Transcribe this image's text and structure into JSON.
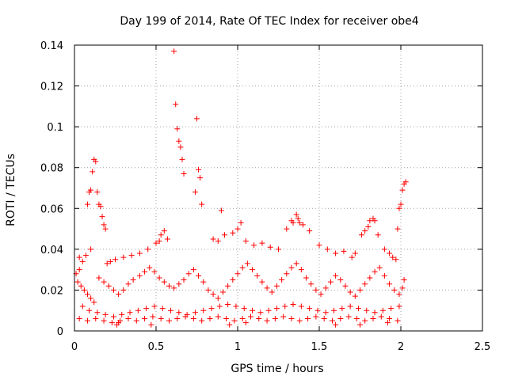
{
  "chart_data": {
    "type": "scatter",
    "title": "Day 199 of 2014, Rate Of TEC Index for receiver obe4",
    "xlabel": "GPS time / hours",
    "ylabel": "ROTI / TECUs",
    "xlim": [
      0,
      2.5
    ],
    "ylim": [
      0,
      0.14
    ],
    "xticks": [
      0,
      0.5,
      1,
      1.5,
      2,
      2.5
    ],
    "xtick_labels": [
      "0",
      "0.5",
      "1",
      "1.5",
      "2",
      "2.5"
    ],
    "yticks": [
      0,
      0.02,
      0.04,
      0.06,
      0.08,
      0.1,
      0.12,
      0.14
    ],
    "ytick_labels": [
      "0",
      "0.02",
      "0.04",
      "0.06",
      "0.08",
      "0.1",
      "0.12",
      "0.14"
    ],
    "grid": true,
    "marker": "plus",
    "color": "#ff0000",
    "series": [
      {
        "name": "ROTI",
        "points": [
          [
            0.61,
            0.137
          ],
          [
            0.62,
            0.111
          ],
          [
            0.63,
            0.099
          ],
          [
            0.64,
            0.093
          ],
          [
            0.65,
            0.09
          ],
          [
            0.66,
            0.084
          ],
          [
            0.67,
            0.077
          ],
          [
            0.75,
            0.104
          ],
          [
            0.76,
            0.079
          ],
          [
            0.77,
            0.075
          ],
          [
            0.74,
            0.068
          ],
          [
            0.78,
            0.062
          ],
          [
            0.12,
            0.084
          ],
          [
            0.13,
            0.083
          ],
          [
            0.11,
            0.078
          ],
          [
            0.1,
            0.069
          ],
          [
            0.09,
            0.068
          ],
          [
            0.14,
            0.068
          ],
          [
            0.15,
            0.062
          ],
          [
            0.08,
            0.062
          ],
          [
            0.16,
            0.061
          ],
          [
            0.17,
            0.056
          ],
          [
            0.18,
            0.052
          ],
          [
            0.19,
            0.05
          ],
          [
            2.03,
            0.073
          ],
          [
            2.02,
            0.072
          ],
          [
            2.01,
            0.069
          ],
          [
            2.0,
            0.062
          ],
          [
            1.99,
            0.06
          ],
          [
            1.98,
            0.05
          ],
          [
            0.9,
            0.059
          ],
          [
            1.02,
            0.053
          ],
          [
            1.0,
            0.05
          ],
          [
            0.97,
            0.048
          ],
          [
            0.85,
            0.045
          ],
          [
            0.88,
            0.044
          ],
          [
            0.92,
            0.047
          ],
          [
            1.05,
            0.044
          ],
          [
            1.36,
            0.057
          ],
          [
            1.37,
            0.055
          ],
          [
            1.33,
            0.054
          ],
          [
            1.34,
            0.053
          ],
          [
            1.38,
            0.053
          ],
          [
            1.4,
            0.052
          ],
          [
            1.3,
            0.05
          ],
          [
            1.44,
            0.049
          ],
          [
            1.83,
            0.055
          ],
          [
            1.84,
            0.054
          ],
          [
            1.81,
            0.054
          ],
          [
            1.8,
            0.051
          ],
          [
            1.78,
            0.049
          ],
          [
            1.76,
            0.047
          ],
          [
            1.86,
            0.047
          ],
          [
            0.55,
            0.049
          ],
          [
            0.53,
            0.047
          ],
          [
            0.52,
            0.044
          ],
          [
            0.57,
            0.045
          ],
          [
            0.5,
            0.043
          ],
          [
            0.45,
            0.04
          ],
          [
            0.4,
            0.038
          ],
          [
            0.35,
            0.037
          ],
          [
            0.3,
            0.036
          ],
          [
            0.25,
            0.035
          ],
          [
            0.22,
            0.034
          ],
          [
            0.2,
            0.033
          ],
          [
            0.05,
            0.034
          ],
          [
            0.03,
            0.036
          ],
          [
            0.07,
            0.037
          ],
          [
            0.1,
            0.04
          ],
          [
            1.1,
            0.042
          ],
          [
            1.15,
            0.043
          ],
          [
            1.2,
            0.041
          ],
          [
            1.25,
            0.04
          ],
          [
            1.5,
            0.042
          ],
          [
            1.55,
            0.04
          ],
          [
            1.6,
            0.038
          ],
          [
            1.65,
            0.039
          ],
          [
            1.7,
            0.036
          ],
          [
            1.72,
            0.038
          ],
          [
            1.9,
            0.04
          ],
          [
            1.93,
            0.038
          ],
          [
            1.95,
            0.036
          ],
          [
            1.97,
            0.035
          ],
          [
            0.02,
            0.024
          ],
          [
            0.04,
            0.022
          ],
          [
            0.06,
            0.02
          ],
          [
            0.08,
            0.018
          ],
          [
            0.1,
            0.016
          ],
          [
            0.12,
            0.014
          ],
          [
            0.01,
            0.028
          ],
          [
            0.03,
            0.03
          ],
          [
            0.15,
            0.026
          ],
          [
            0.18,
            0.024
          ],
          [
            0.21,
            0.022
          ],
          [
            0.24,
            0.02
          ],
          [
            0.27,
            0.018
          ],
          [
            0.3,
            0.02
          ],
          [
            0.33,
            0.023
          ],
          [
            0.36,
            0.025
          ],
          [
            0.4,
            0.027
          ],
          [
            0.43,
            0.029
          ],
          [
            0.46,
            0.031
          ],
          [
            0.49,
            0.029
          ],
          [
            0.52,
            0.026
          ],
          [
            0.55,
            0.024
          ],
          [
            0.58,
            0.022
          ],
          [
            0.61,
            0.021
          ],
          [
            0.64,
            0.023
          ],
          [
            0.67,
            0.025
          ],
          [
            0.7,
            0.028
          ],
          [
            0.73,
            0.03
          ],
          [
            0.76,
            0.027
          ],
          [
            0.79,
            0.024
          ],
          [
            0.82,
            0.02
          ],
          [
            0.85,
            0.018
          ],
          [
            0.88,
            0.016
          ],
          [
            0.91,
            0.019
          ],
          [
            0.94,
            0.022
          ],
          [
            0.97,
            0.025
          ],
          [
            1.0,
            0.028
          ],
          [
            1.03,
            0.031
          ],
          [
            1.06,
            0.033
          ],
          [
            1.09,
            0.03
          ],
          [
            1.12,
            0.027
          ],
          [
            1.15,
            0.024
          ],
          [
            1.18,
            0.021
          ],
          [
            1.21,
            0.019
          ],
          [
            1.24,
            0.022
          ],
          [
            1.27,
            0.025
          ],
          [
            1.3,
            0.028
          ],
          [
            1.33,
            0.031
          ],
          [
            1.36,
            0.033
          ],
          [
            1.39,
            0.03
          ],
          [
            1.42,
            0.026
          ],
          [
            1.45,
            0.023
          ],
          [
            1.48,
            0.02
          ],
          [
            1.51,
            0.018
          ],
          [
            1.54,
            0.021
          ],
          [
            1.57,
            0.024
          ],
          [
            1.6,
            0.027
          ],
          [
            1.63,
            0.025
          ],
          [
            1.66,
            0.022
          ],
          [
            1.69,
            0.019
          ],
          [
            1.72,
            0.017
          ],
          [
            1.75,
            0.02
          ],
          [
            1.78,
            0.023
          ],
          [
            1.81,
            0.026
          ],
          [
            1.84,
            0.029
          ],
          [
            1.87,
            0.031
          ],
          [
            1.9,
            0.027
          ],
          [
            1.93,
            0.023
          ],
          [
            1.96,
            0.02
          ],
          [
            1.99,
            0.018
          ],
          [
            2.01,
            0.021
          ],
          [
            2.02,
            0.025
          ],
          [
            0.05,
            0.012
          ],
          [
            0.09,
            0.01
          ],
          [
            0.14,
            0.009
          ],
          [
            0.19,
            0.008
          ],
          [
            0.24,
            0.007
          ],
          [
            0.29,
            0.008
          ],
          [
            0.34,
            0.009
          ],
          [
            0.39,
            0.01
          ],
          [
            0.44,
            0.011
          ],
          [
            0.49,
            0.012
          ],
          [
            0.54,
            0.011
          ],
          [
            0.59,
            0.01
          ],
          [
            0.64,
            0.009
          ],
          [
            0.69,
            0.008
          ],
          [
            0.74,
            0.009
          ],
          [
            0.79,
            0.01
          ],
          [
            0.84,
            0.011
          ],
          [
            0.89,
            0.012
          ],
          [
            0.94,
            0.013
          ],
          [
            0.99,
            0.012
          ],
          [
            1.04,
            0.011
          ],
          [
            1.09,
            0.01
          ],
          [
            1.14,
            0.009
          ],
          [
            1.19,
            0.01
          ],
          [
            1.24,
            0.011
          ],
          [
            1.29,
            0.012
          ],
          [
            1.34,
            0.013
          ],
          [
            1.39,
            0.012
          ],
          [
            1.44,
            0.011
          ],
          [
            1.49,
            0.01
          ],
          [
            1.54,
            0.009
          ],
          [
            1.59,
            0.01
          ],
          [
            1.64,
            0.011
          ],
          [
            1.69,
            0.012
          ],
          [
            1.74,
            0.011
          ],
          [
            1.79,
            0.01
          ],
          [
            1.84,
            0.009
          ],
          [
            1.89,
            0.01
          ],
          [
            1.94,
            0.011
          ],
          [
            1.99,
            0.012
          ],
          [
            0.03,
            0.006
          ],
          [
            0.08,
            0.005
          ],
          [
            0.13,
            0.006
          ],
          [
            0.18,
            0.005
          ],
          [
            0.23,
            0.004
          ],
          [
            0.28,
            0.005
          ],
          [
            0.33,
            0.006
          ],
          [
            0.38,
            0.005
          ],
          [
            0.43,
            0.006
          ],
          [
            0.48,
            0.007
          ],
          [
            0.53,
            0.006
          ],
          [
            0.58,
            0.005
          ],
          [
            0.63,
            0.006
          ],
          [
            0.68,
            0.007
          ],
          [
            0.73,
            0.006
          ],
          [
            0.78,
            0.005
          ],
          [
            0.83,
            0.006
          ],
          [
            0.88,
            0.007
          ],
          [
            0.93,
            0.006
          ],
          [
            0.98,
            0.005
          ],
          [
            1.03,
            0.006
          ],
          [
            1.08,
            0.007
          ],
          [
            1.13,
            0.006
          ],
          [
            1.18,
            0.005
          ],
          [
            1.23,
            0.006
          ],
          [
            1.28,
            0.007
          ],
          [
            1.33,
            0.006
          ],
          [
            1.38,
            0.005
          ],
          [
            1.43,
            0.006
          ],
          [
            1.48,
            0.007
          ],
          [
            1.53,
            0.006
          ],
          [
            1.58,
            0.005
          ],
          [
            1.63,
            0.006
          ],
          [
            1.68,
            0.007
          ],
          [
            1.73,
            0.006
          ],
          [
            1.78,
            0.005
          ],
          [
            1.83,
            0.006
          ],
          [
            1.88,
            0.007
          ],
          [
            1.93,
            0.006
          ],
          [
            1.98,
            0.005
          ],
          [
            0.26,
            0.003
          ],
          [
            0.27,
            0.004
          ],
          [
            0.95,
            0.003
          ],
          [
            1.05,
            0.004
          ],
          [
            1.6,
            0.003
          ],
          [
            1.75,
            0.003
          ],
          [
            0.47,
            0.003
          ],
          [
            1.92,
            0.004
          ]
        ]
      }
    ]
  }
}
